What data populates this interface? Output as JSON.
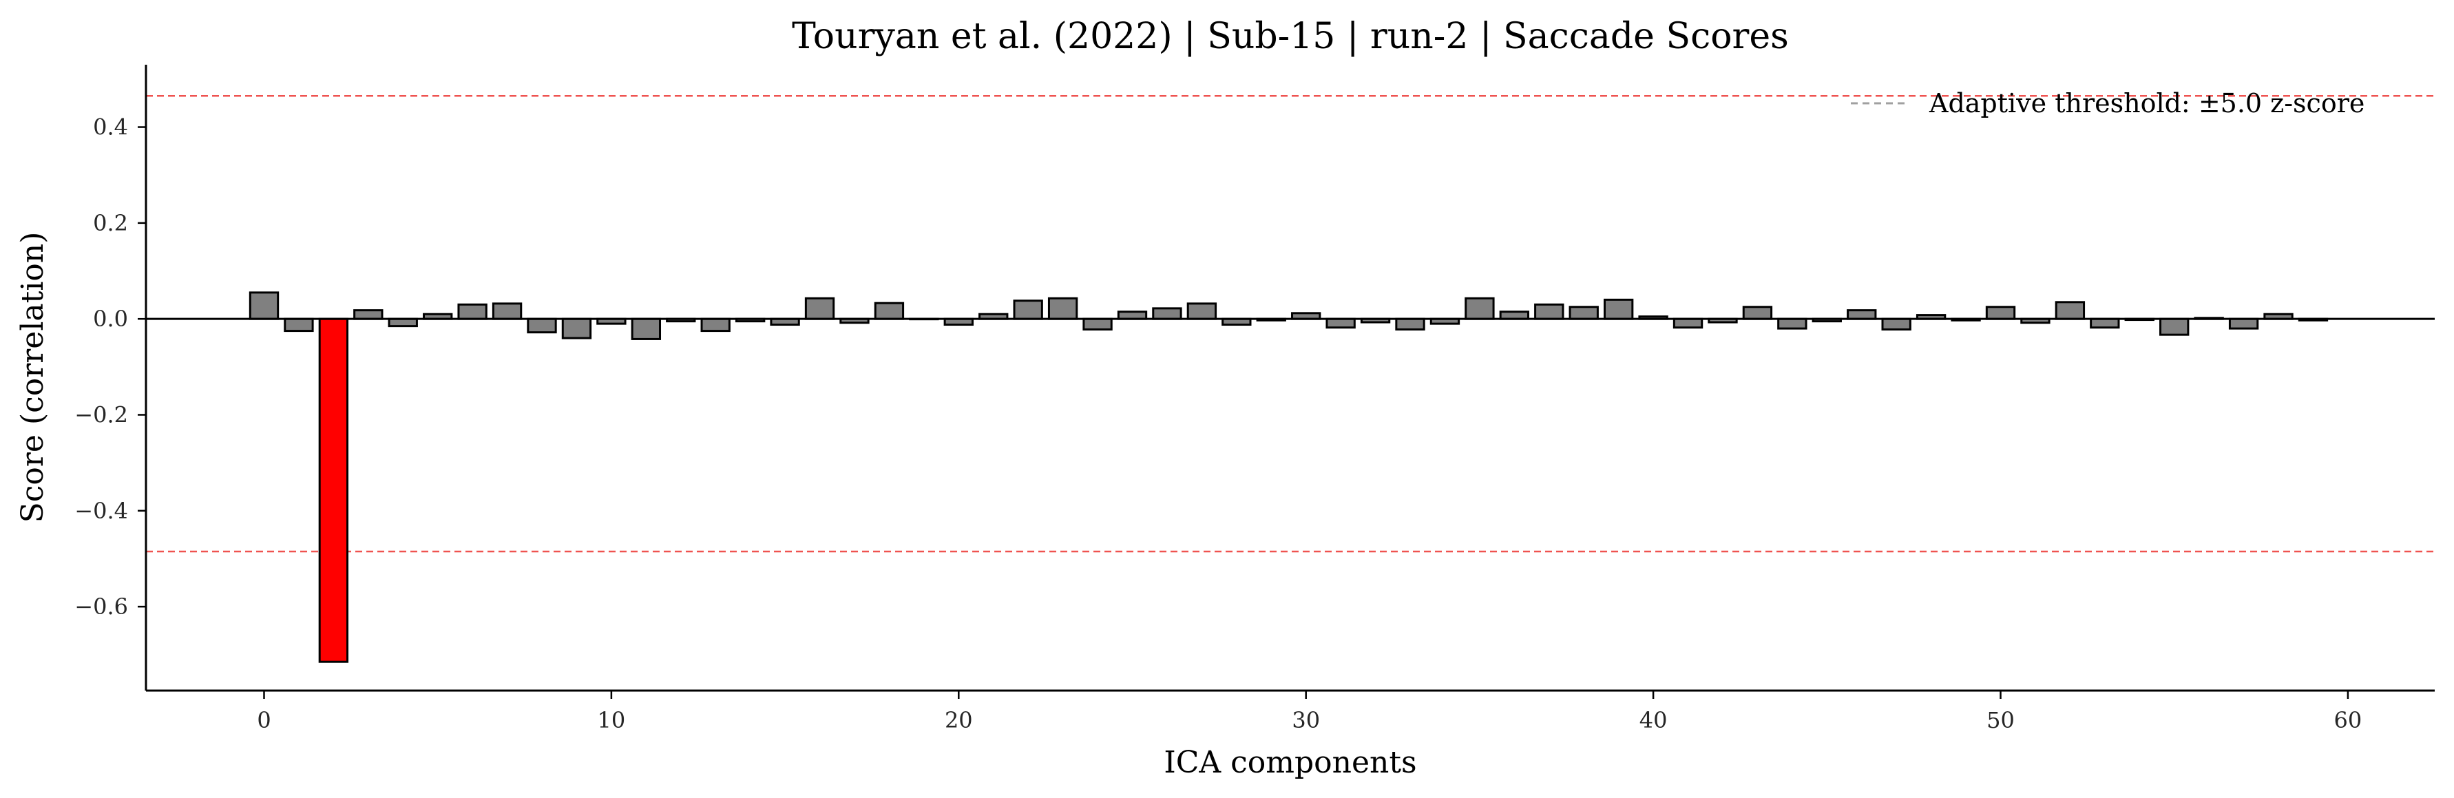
{
  "chart_data": {
    "type": "bar",
    "title": "Touryan et al. (2022) | Sub-15 | run-2 | Saccade Scores",
    "xlabel": "ICA components",
    "ylabel": "Score (correlation)",
    "xlim": [
      -3.4,
      62.5
    ],
    "ylim": [
      -0.775,
      0.53
    ],
    "xticks": [
      0,
      10,
      20,
      30,
      40,
      50,
      60
    ],
    "yticks": [
      -0.6,
      -0.4,
      -0.2,
      0.0,
      0.2,
      0.4
    ],
    "ytick_labels": [
      "−0.6",
      "−0.4",
      "−0.2",
      "0.0",
      "0.2",
      "0.4"
    ],
    "grid": false,
    "legend_position": "top-right",
    "components": [
      0,
      1,
      2,
      3,
      4,
      5,
      6,
      7,
      8,
      9,
      10,
      11,
      12,
      13,
      14,
      15,
      16,
      17,
      18,
      19,
      20,
      21,
      22,
      23,
      24,
      25,
      26,
      27,
      28,
      29,
      30,
      31,
      32,
      33,
      34,
      35,
      36,
      37,
      38,
      39,
      40,
      41,
      42,
      43,
      44,
      45,
      46,
      47,
      48,
      49,
      50,
      51,
      52,
      53,
      54,
      55,
      56,
      57,
      58,
      59
    ],
    "values": [
      0.055,
      -0.025,
      -0.715,
      0.018,
      -0.015,
      0.01,
      0.03,
      0.032,
      -0.028,
      -0.04,
      -0.01,
      -0.042,
      -0.005,
      -0.025,
      -0.005,
      -0.012,
      0.043,
      -0.008,
      0.033,
      0.0,
      -0.012,
      0.01,
      0.038,
      0.043,
      -0.022,
      0.015,
      0.022,
      0.032,
      -0.012,
      -0.003,
      0.012,
      -0.018,
      -0.007,
      -0.022,
      -0.01,
      0.043,
      0.015,
      0.03,
      0.025,
      0.04,
      0.005,
      -0.018,
      -0.007,
      0.025,
      -0.02,
      -0.005,
      0.018,
      -0.022,
      0.008,
      -0.003,
      0.025,
      -0.008,
      0.035,
      -0.018,
      -0.002,
      -0.033,
      0.002,
      -0.02,
      0.01,
      -0.003
    ],
    "flagged_components": [
      2
    ],
    "colors": {
      "bar": "#808080",
      "flagged_bar": "#ff0000",
      "bar_edge": "#000000",
      "threshold_line": "#ef5350",
      "legend_line": "#a0a0a0"
    },
    "thresholds": [
      0.465,
      -0.485
    ],
    "legend": [
      "Adaptive threshold: ±5.0 z-score"
    ]
  }
}
